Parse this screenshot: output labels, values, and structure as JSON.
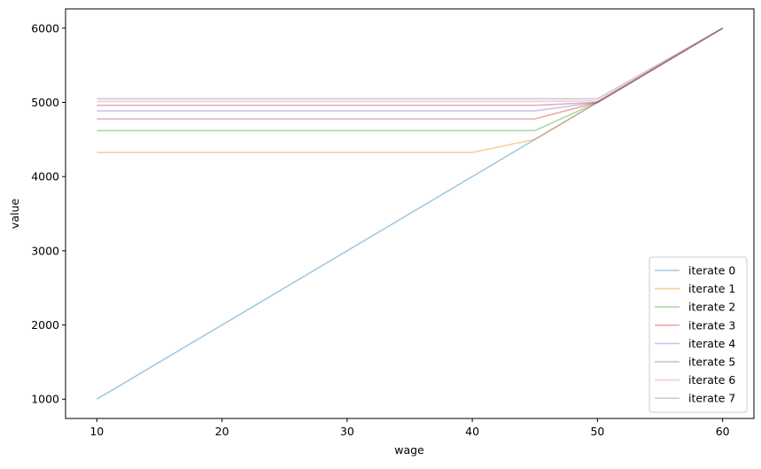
{
  "chart_data": {
    "type": "line",
    "xlabel": "wage",
    "ylabel": "value",
    "xlim": [
      7.5,
      62.5
    ],
    "ylim": [
      740,
      6260
    ],
    "xticks": [
      10,
      20,
      30,
      40,
      50,
      60
    ],
    "yticks": [
      1000,
      2000,
      3000,
      4000,
      5000,
      6000
    ],
    "grid": false,
    "legend_position": "bottom-right",
    "series": [
      {
        "name": "iterate 0",
        "color": "#1f77b4",
        "x": [
          10,
          60
        ],
        "y": [
          1000,
          6000
        ]
      },
      {
        "name": "iterate 1",
        "color": "#ff7f0e",
        "x": [
          10,
          40,
          45,
          50,
          60
        ],
        "y": [
          4325,
          4325,
          4500,
          5000,
          6000
        ]
      },
      {
        "name": "iterate 2",
        "color": "#2ca02c",
        "x": [
          10,
          45,
          50,
          60
        ],
        "y": [
          4619,
          4619,
          5000,
          6000
        ]
      },
      {
        "name": "iterate 3",
        "color": "#d62728",
        "x": [
          10,
          45,
          50,
          60
        ],
        "y": [
          4777,
          4777,
          5000,
          6000
        ]
      },
      {
        "name": "iterate 4",
        "color": "#9467bd",
        "x": [
          10,
          45,
          50,
          60
        ],
        "y": [
          4885,
          4885,
          5000,
          6000
        ]
      },
      {
        "name": "iterate 5",
        "color": "#8c564b",
        "x": [
          10,
          45,
          50,
          60
        ],
        "y": [
          4960,
          4960,
          5000,
          6000
        ]
      },
      {
        "name": "iterate 6",
        "color": "#e377c2",
        "x": [
          10,
          45,
          50,
          60
        ],
        "y": [
          5012,
          5012,
          5020,
          6000
        ]
      },
      {
        "name": "iterate 7",
        "color": "#7f7f7f",
        "x": [
          10,
          50,
          60
        ],
        "y": [
          5048,
          5048,
          6000
        ]
      }
    ]
  }
}
